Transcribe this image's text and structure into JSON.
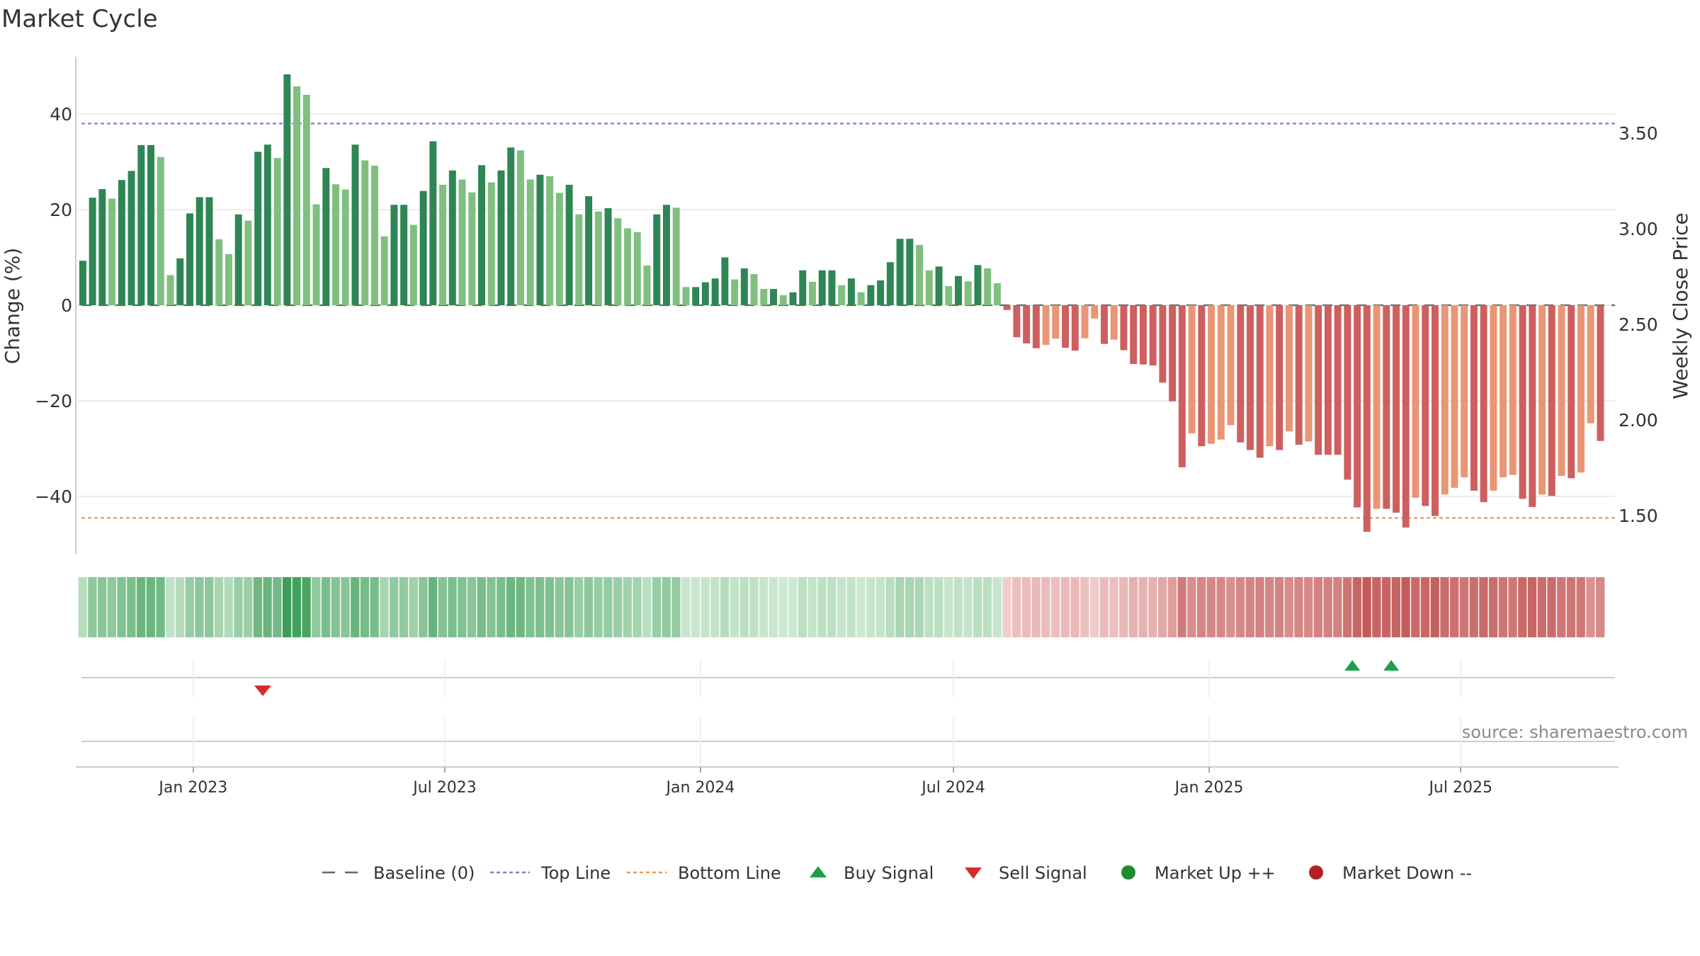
{
  "chart_data": {
    "type": "bar",
    "title": "Market Cycle",
    "ylabel": "Change (%)",
    "y2label": "Weekly Close Price",
    "ylim": [
      -52,
      52
    ],
    "y2lim": [
      1.3,
      3.9
    ],
    "yticks": [
      40,
      20,
      0,
      -20,
      -40
    ],
    "ytick_labels": [
      "40",
      "20",
      "0",
      "−20",
      "−40"
    ],
    "y2ticks": [
      3.5,
      3.0,
      2.5,
      2.0,
      1.5
    ],
    "y2tick_labels": [
      "3.50",
      "3.00",
      "2.50",
      "2.00",
      "1.50"
    ],
    "x_start": "2022-10-10",
    "x_end": "2025-10-20",
    "x_step_days": 7,
    "xticks": [
      "2023-01-01",
      "2023-07-01",
      "2024-01-01",
      "2024-07-01",
      "2025-01-01",
      "2025-07-01"
    ],
    "xtick_labels": [
      "Jan 2023",
      "Jul 2023",
      "Jan 2024",
      "Jul 2024",
      "Jan 2025",
      "Jul 2025"
    ],
    "top_line": 38,
    "bottom_line": -44.5,
    "baseline": 0,
    "grid": true,
    "legend_position": "bottom",
    "values": [
      9.3,
      22.5,
      24.3,
      22.3,
      26.2,
      28.1,
      33.5,
      33.5,
      31.0,
      6.3,
      9.8,
      19.2,
      22.6,
      22.6,
      13.8,
      10.7,
      19.0,
      17.7,
      32.1,
      33.6,
      30.8,
      48.3,
      45.8,
      44.0,
      21.1,
      28.7,
      25.3,
      24.2,
      33.6,
      30.3,
      29.2,
      14.4,
      21.0,
      21.0,
      16.8,
      23.9,
      34.3,
      25.2,
      28.2,
      26.3,
      23.6,
      29.3,
      25.7,
      28.2,
      33.0,
      32.4,
      26.3,
      27.3,
      27.0,
      23.5,
      25.2,
      19.0,
      22.8,
      19.6,
      20.3,
      18.2,
      16.1,
      15.3,
      8.3,
      19.0,
      21.0,
      20.4,
      3.8,
      3.8,
      4.8,
      5.6,
      10.0,
      5.4,
      7.7,
      6.5,
      3.4,
      3.4,
      2.1,
      2.7,
      7.3,
      4.9,
      7.3,
      7.3,
      4.2,
      5.6,
      2.7,
      4.2,
      5.2,
      9.0,
      13.9,
      13.9,
      12.6,
      7.3,
      8.1,
      4.0,
      6.1,
      5.0,
      8.4,
      7.7,
      4.6,
      -1.0,
      -6.7,
      -8.0,
      -9.0,
      -8.3,
      -7.0,
      -8.9,
      -9.5,
      -6.9,
      -2.8,
      -8.1,
      -7.2,
      -9.4,
      -12.3,
      -12.4,
      -12.6,
      -16.2,
      -20.1,
      -33.9,
      -26.8,
      -29.5,
      -29.0,
      -28.1,
      -25.1,
      -28.7,
      -30.3,
      -31.9,
      -29.5,
      -30.3,
      -26.4,
      -29.2,
      -28.5,
      -31.3,
      -31.3,
      -31.3,
      -36.5,
      -42.3,
      -47.4,
      -42.6,
      -42.6,
      -43.4,
      -46.5,
      -40.3,
      -42.0,
      -44.1,
      -39.6,
      -38.2,
      -36.0,
      -38.8,
      -41.2,
      -38.8,
      -36.0,
      -35.5,
      -40.5,
      -42.2,
      -39.6,
      -39.9,
      -35.7,
      -36.2,
      -35.0,
      -24.7,
      -28.4
    ],
    "heat_scale": "value",
    "signals": [
      {
        "type": "sell",
        "date": "2023-02-20"
      },
      {
        "type": "buy",
        "date": "2025-04-14"
      },
      {
        "type": "buy",
        "date": "2025-05-12"
      }
    ],
    "legend": [
      {
        "key": "baseline",
        "label": "Baseline (0)"
      },
      {
        "key": "top",
        "label": "Top Line"
      },
      {
        "key": "bottom",
        "label": "Bottom Line"
      },
      {
        "key": "buy",
        "label": "Buy Signal"
      },
      {
        "key": "sell",
        "label": "Sell Signal"
      },
      {
        "key": "up",
        "label": "Market Up ++"
      },
      {
        "key": "down",
        "label": "Market Down --"
      }
    ],
    "source": "source: sharemaestro.com"
  },
  "colors": {
    "pos_dark": "#2e8654",
    "pos_light": "#80bf80",
    "neg_dark": "#cd5f5f",
    "neg_light": "#e89675",
    "top_line": "#9a6fd0",
    "bottom_line": "#ee9a4e",
    "baseline": "#666666",
    "buy": "#1f9e49",
    "sell": "#d62b2b",
    "up": "#1f8b2e",
    "down": "#b22222"
  }
}
